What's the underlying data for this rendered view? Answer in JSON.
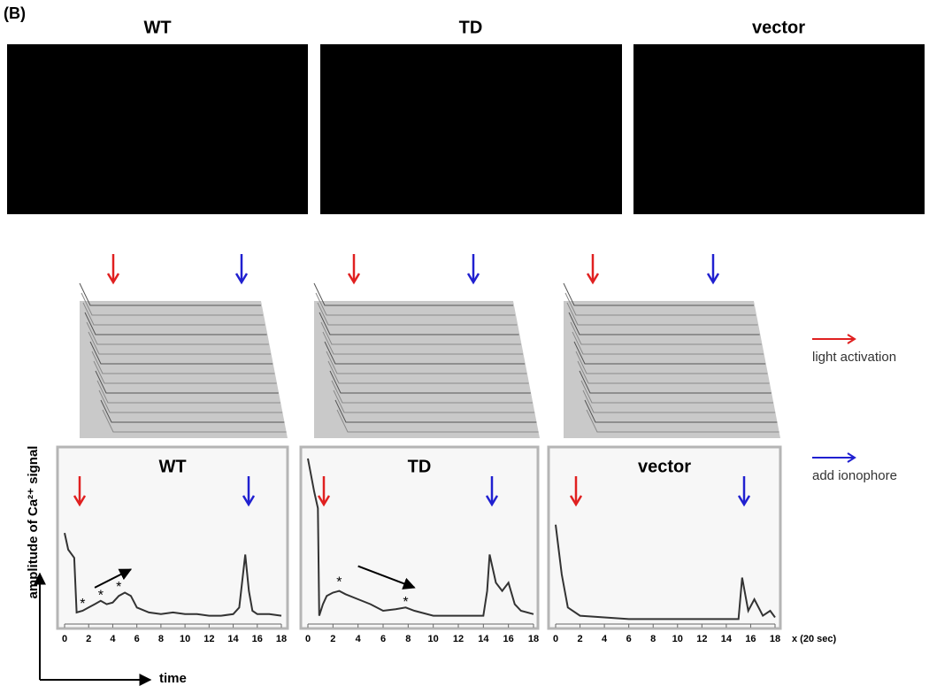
{
  "panel_label": "(B)",
  "image_titles": [
    "WT",
    "TD",
    "vector"
  ],
  "legend": {
    "red": "light activation",
    "blue": "add ionophore"
  },
  "y_axis_label": "amplitude of Ca²⁺ signal",
  "x_axis_label": "time",
  "x_unit_label": "x (20 sec)",
  "chart_data": [
    {
      "type": "line",
      "title": "WT",
      "color": "#333333",
      "xlim": [
        0,
        18
      ],
      "xticks": [
        0,
        2,
        4,
        6,
        8,
        10,
        12,
        14,
        16,
        18
      ],
      "ylim": [
        0,
        1
      ],
      "annotations": [
        "*",
        "*",
        "*"
      ],
      "x": [
        0,
        0.3,
        0.8,
        1,
        1.5,
        2,
        2.5,
        3,
        3.5,
        4,
        4.5,
        5,
        5.5,
        6,
        7,
        8,
        9,
        10,
        11,
        12,
        13,
        14,
        14.5,
        15,
        15.3,
        15.6,
        16,
        17,
        18
      ],
      "values": [
        0.55,
        0.45,
        0.4,
        0.07,
        0.08,
        0.1,
        0.12,
        0.14,
        0.12,
        0.13,
        0.17,
        0.19,
        0.17,
        0.1,
        0.07,
        0.06,
        0.07,
        0.06,
        0.06,
        0.05,
        0.05,
        0.06,
        0.1,
        0.42,
        0.2,
        0.08,
        0.06,
        0.06,
        0.05
      ]
    },
    {
      "type": "line",
      "title": "TD",
      "color": "#333333",
      "xlim": [
        0,
        18
      ],
      "xticks": [
        0,
        2,
        4,
        6,
        8,
        10,
        12,
        14,
        16,
        18
      ],
      "ylim": [
        0,
        1
      ],
      "annotations": [
        "*",
        "*"
      ],
      "x": [
        0,
        0.5,
        0.8,
        0.9,
        1.2,
        1.5,
        2,
        2.5,
        3,
        4,
        5,
        6,
        7,
        7.8,
        8.5,
        10,
        11,
        12,
        13,
        14,
        14.3,
        14.5,
        15,
        15.5,
        16,
        16.5,
        17,
        18
      ],
      "values": [
        1.0,
        0.8,
        0.7,
        0.05,
        0.12,
        0.17,
        0.19,
        0.2,
        0.18,
        0.15,
        0.12,
        0.08,
        0.09,
        0.1,
        0.08,
        0.05,
        0.05,
        0.05,
        0.05,
        0.05,
        0.2,
        0.42,
        0.25,
        0.2,
        0.25,
        0.12,
        0.08,
        0.06
      ]
    },
    {
      "type": "line",
      "title": "vector",
      "color": "#333333",
      "xlim": [
        0,
        18
      ],
      "xticks": [
        0,
        2,
        4,
        6,
        8,
        10,
        12,
        14,
        16,
        18
      ],
      "ylim": [
        0,
        1
      ],
      "x": [
        0,
        0.5,
        1,
        2,
        4,
        6,
        8,
        10,
        12,
        14,
        15,
        15.3,
        15.8,
        16.3,
        17,
        17.6,
        18
      ],
      "values": [
        0.6,
        0.3,
        0.1,
        0.05,
        0.04,
        0.03,
        0.03,
        0.03,
        0.03,
        0.03,
        0.03,
        0.28,
        0.08,
        0.15,
        0.05,
        0.08,
        0.04
      ]
    }
  ]
}
